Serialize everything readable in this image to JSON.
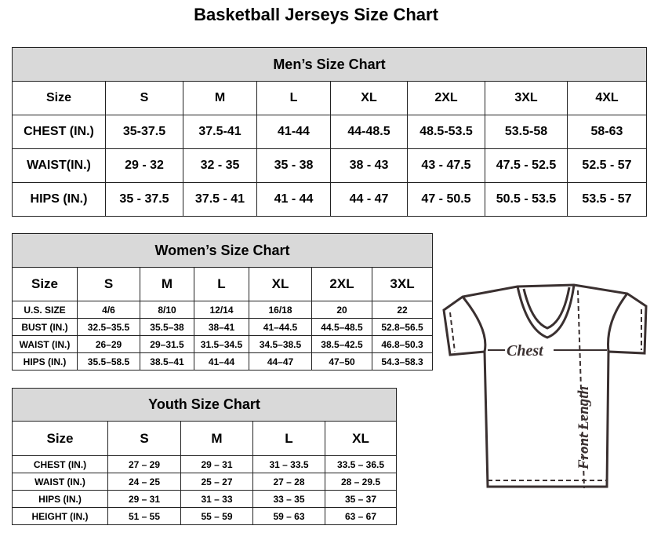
{
  "title": "Basketball Jerseys Size Chart",
  "men": {
    "heading": "Men’s Size Chart",
    "header": [
      "Size",
      "S",
      "M",
      "L",
      "XL",
      "2XL",
      "3XL",
      "4XL"
    ],
    "rows": [
      [
        "CHEST (IN.)",
        "35-37.5",
        "37.5-41",
        "41-44",
        "44-48.5",
        "48.5-53.5",
        "53.5-58",
        "58-63"
      ],
      [
        "WAIST(IN.)",
        "29 - 32",
        "32 - 35",
        "35 - 38",
        "38 - 43",
        "43 - 47.5",
        "47.5 - 52.5",
        "52.5 - 57"
      ],
      [
        "HIPS (IN.)",
        "35 - 37.5",
        "37.5 - 41",
        "41 - 44",
        "44 - 47",
        "47 - 50.5",
        "50.5 - 53.5",
        "53.5 - 57"
      ]
    ]
  },
  "women": {
    "heading": "Women’s Size Chart",
    "header": [
      "Size",
      "S",
      "M",
      "L",
      "XL",
      "2XL",
      "3XL"
    ],
    "rows": [
      [
        "U.S. SIZE",
        "4/6",
        "8/10",
        "12/14",
        "16/18",
        "20",
        "22"
      ],
      [
        "BUST (IN.)",
        "32.5–35.5",
        "35.5–38",
        "38–41",
        "41–44.5",
        "44.5–48.5",
        "52.8–56.5"
      ],
      [
        "WAIST (IN.)",
        "26–29",
        "29–31.5",
        "31.5–34.5",
        "34.5–38.5",
        "38.5–42.5",
        "46.8–50.3"
      ],
      [
        "HIPS (IN.)",
        "35.5–58.5",
        "38.5–41",
        "41–44",
        "44–47",
        "47–50",
        "54.3–58.3"
      ]
    ]
  },
  "youth": {
    "heading": "Youth Size Chart",
    "header": [
      "Size",
      "S",
      "M",
      "L",
      "XL"
    ],
    "rows": [
      [
        "CHEST (IN.)",
        "27 – 29",
        "29 – 31",
        "31 – 33.5",
        "33.5 – 36.5"
      ],
      [
        "WAIST (IN.)",
        "24 – 25",
        "25 – 27",
        "27 – 28",
        "28 – 29.5"
      ],
      [
        "HIPS (IN.)",
        "29 – 31",
        "31 – 33",
        "33 – 35",
        "35 – 37"
      ],
      [
        "HEIGHT (IN.)",
        "51 – 55",
        "55 – 59",
        "59 – 63",
        "63 – 67"
      ]
    ]
  },
  "diagram": {
    "chest_label": "Chest",
    "length_label": "Front Length",
    "icon": "jersey-shirt-icon"
  }
}
